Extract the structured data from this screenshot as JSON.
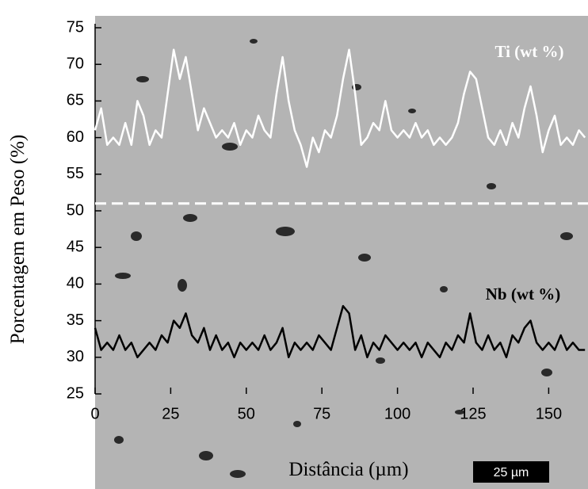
{
  "chart_data": {
    "type": "line",
    "x_label": "Distância (µm)",
    "y_label": "Porcentagem em Peso (%)",
    "x": [
      0,
      2,
      4,
      6,
      8,
      10,
      12,
      14,
      16,
      18,
      20,
      22,
      24,
      26,
      28,
      30,
      32,
      34,
      36,
      38,
      40,
      42,
      44,
      46,
      48,
      50,
      52,
      54,
      56,
      58,
      60,
      62,
      64,
      66,
      68,
      70,
      72,
      74,
      76,
      78,
      80,
      82,
      84,
      86,
      88,
      90,
      92,
      94,
      96,
      98,
      100,
      102,
      104,
      106,
      108,
      110,
      112,
      114,
      116,
      118,
      120,
      122,
      124,
      126,
      128,
      130,
      132,
      134,
      136,
      138,
      140,
      142,
      144,
      146,
      148,
      150,
      152,
      154,
      156,
      158,
      160,
      162
    ],
    "series": [
      {
        "name": "Ti (wt %)",
        "color": "#ffffff",
        "values": [
          61,
          64,
          59,
          60,
          59,
          62,
          59,
          65,
          63,
          59,
          61,
          60,
          66,
          72,
          68,
          71,
          66,
          61,
          64,
          62,
          60,
          61,
          60,
          62,
          59,
          61,
          60,
          63,
          61,
          60,
          66,
          71,
          65,
          61,
          59,
          56,
          60,
          58,
          61,
          60,
          63,
          68,
          72,
          66,
          59,
          60,
          62,
          61,
          65,
          61,
          60,
          61,
          60,
          62,
          60,
          61,
          59,
          60,
          59,
          60,
          62,
          66,
          69,
          68,
          64,
          60,
          59,
          61,
          59,
          62,
          60,
          64,
          67,
          63,
          58,
          61,
          63,
          59,
          60,
          59,
          61,
          60
        ]
      },
      {
        "name": "Nb (wt %)",
        "color": "#000000",
        "values": [
          34,
          31,
          32,
          31,
          33,
          31,
          32,
          30,
          31,
          32,
          31,
          33,
          32,
          35,
          34,
          36,
          33,
          32,
          34,
          31,
          33,
          31,
          32,
          30,
          32,
          31,
          32,
          31,
          33,
          31,
          32,
          34,
          30,
          32,
          31,
          32,
          31,
          33,
          32,
          31,
          34,
          37,
          36,
          31,
          33,
          30,
          32,
          31,
          33,
          32,
          31,
          32,
          31,
          32,
          30,
          32,
          31,
          30,
          32,
          31,
          33,
          32,
          36,
          32,
          31,
          33,
          31,
          32,
          30,
          33,
          32,
          34,
          35,
          32,
          31,
          32,
          31,
          33,
          31,
          32,
          31,
          31
        ]
      }
    ],
    "reference_line": 51,
    "xlim": [
      0,
      163
    ],
    "xticks": [
      0,
      25,
      50,
      75,
      100,
      125,
      150
    ],
    "ylim": [
      25,
      75
    ],
    "yticks": [
      25,
      30,
      35,
      40,
      45,
      50,
      55,
      60,
      65,
      70,
      75
    ],
    "scale_bar_label": "25 µm"
  }
}
